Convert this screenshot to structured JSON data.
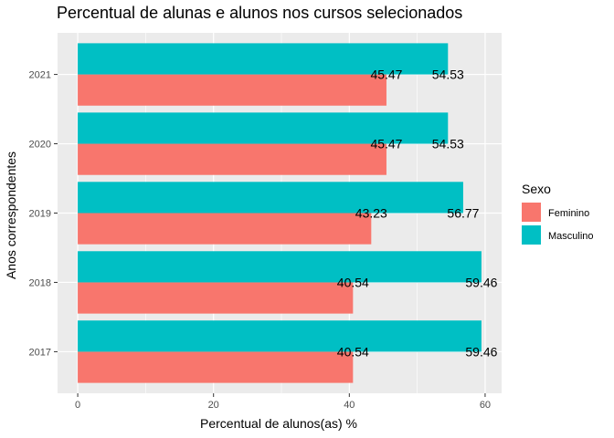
{
  "chart_data": {
    "type": "bar",
    "orientation": "horizontal",
    "title": "Percentual de alunas e alunos nos cursos selecionados",
    "xlabel": "Percentual de alunos(as) %",
    "ylabel": "Anos correspondentes",
    "categories": [
      "2017",
      "2018",
      "2019",
      "2020",
      "2021"
    ],
    "series": [
      {
        "name": "Feminino",
        "color": "#F8766D",
        "values": [
          40.54,
          40.54,
          43.23,
          45.47,
          45.47
        ],
        "labels": [
          "40.54",
          "40.54",
          "43.23",
          "45.47",
          "45.47"
        ]
      },
      {
        "name": "Masculino",
        "color": "#00BFC4",
        "values": [
          59.46,
          59.46,
          56.77,
          54.53,
          54.53
        ],
        "labels": [
          "59.46",
          "59.46",
          "56.77",
          "54.53",
          "54.53"
        ]
      }
    ],
    "xlim": [
      -2.97,
      62.43
    ],
    "xticks": [
      0,
      20,
      40,
      60
    ],
    "xtick_labels": [
      "0",
      "20",
      "40",
      "60"
    ],
    "grid": true,
    "panel_background": "#EBEBEB",
    "legend": {
      "title": "Sexo",
      "position": "right"
    }
  }
}
